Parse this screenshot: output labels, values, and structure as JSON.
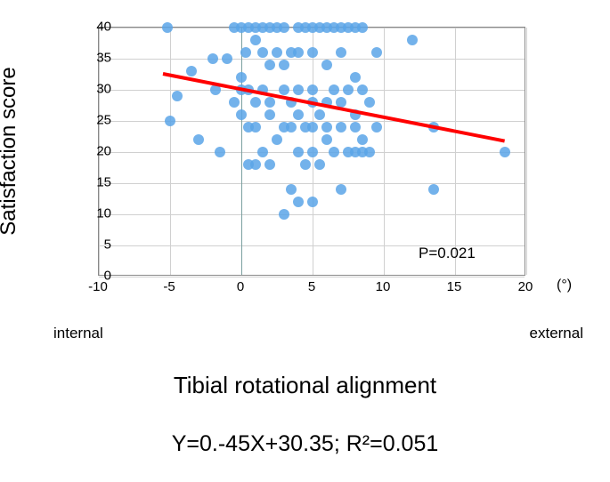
{
  "chart": {
    "type": "scatter",
    "xlim": [
      -10,
      20
    ],
    "ylim": [
      0,
      40
    ],
    "xticks": [
      -10,
      -5,
      0,
      5,
      10,
      15,
      20
    ],
    "yticks": [
      0,
      5,
      10,
      15,
      20,
      25,
      30,
      35,
      40
    ],
    "grid_color": "#d0d0d0",
    "zero_line_color": "#7aa0a0",
    "background_color": "#ffffff",
    "border_color": "#888888",
    "point_color": "#5aa5e8",
    "point_radius": 6,
    "trend_color": "#ff0000",
    "trend_width": 4,
    "trend_x1": -5.5,
    "trend_y1": 32.8,
    "trend_x2": 18.5,
    "trend_y2": 22.0,
    "points": [
      [
        -5.2,
        40
      ],
      [
        -5.0,
        25
      ],
      [
        -4.5,
        29
      ],
      [
        -3.5,
        33
      ],
      [
        -3.0,
        22
      ],
      [
        -2.0,
        35
      ],
      [
        -1.8,
        30
      ],
      [
        -1.5,
        20
      ],
      [
        -1.0,
        35
      ],
      [
        -0.5,
        40
      ],
      [
        -0.5,
        28
      ],
      [
        0.0,
        30
      ],
      [
        0.0,
        40
      ],
      [
        0.0,
        32
      ],
      [
        0.0,
        26
      ],
      [
        0.3,
        36
      ],
      [
        0.5,
        40
      ],
      [
        0.5,
        30
      ],
      [
        0.5,
        24
      ],
      [
        0.5,
        18
      ],
      [
        1.0,
        40
      ],
      [
        1.0,
        38
      ],
      [
        1.0,
        24
      ],
      [
        1.0,
        18
      ],
      [
        1.0,
        28
      ],
      [
        1.5,
        40
      ],
      [
        1.5,
        36
      ],
      [
        1.5,
        30
      ],
      [
        1.5,
        20
      ],
      [
        2.0,
        40
      ],
      [
        2.0,
        34
      ],
      [
        2.0,
        28
      ],
      [
        2.0,
        26
      ],
      [
        2.0,
        18
      ],
      [
        2.5,
        40
      ],
      [
        2.5,
        36
      ],
      [
        2.5,
        22
      ],
      [
        3.0,
        40
      ],
      [
        3.0,
        34
      ],
      [
        3.0,
        30
      ],
      [
        3.0,
        24
      ],
      [
        3.0,
        10
      ],
      [
        3.5,
        36
      ],
      [
        3.5,
        28
      ],
      [
        3.5,
        24
      ],
      [
        3.5,
        14
      ],
      [
        4.0,
        40
      ],
      [
        4.0,
        36
      ],
      [
        4.0,
        30
      ],
      [
        4.0,
        26
      ],
      [
        4.0,
        20
      ],
      [
        4.0,
        12
      ],
      [
        4.5,
        40
      ],
      [
        4.5,
        24
      ],
      [
        4.5,
        18
      ],
      [
        5.0,
        40
      ],
      [
        5.0,
        36
      ],
      [
        5.0,
        30
      ],
      [
        5.0,
        28
      ],
      [
        5.0,
        24
      ],
      [
        5.0,
        20
      ],
      [
        5.0,
        12
      ],
      [
        5.5,
        40
      ],
      [
        5.5,
        26
      ],
      [
        5.5,
        18
      ],
      [
        6.0,
        40
      ],
      [
        6.0,
        34
      ],
      [
        6.0,
        28
      ],
      [
        6.0,
        24
      ],
      [
        6.0,
        22
      ],
      [
        6.5,
        40
      ],
      [
        6.5,
        30
      ],
      [
        6.5,
        20
      ],
      [
        7.0,
        40
      ],
      [
        7.0,
        36
      ],
      [
        7.0,
        28
      ],
      [
        7.0,
        24
      ],
      [
        7.0,
        14
      ],
      [
        7.5,
        40
      ],
      [
        7.5,
        30
      ],
      [
        7.5,
        20
      ],
      [
        8.0,
        40
      ],
      [
        8.0,
        32
      ],
      [
        8.0,
        26
      ],
      [
        8.0,
        24
      ],
      [
        8.0,
        20
      ],
      [
        8.5,
        40
      ],
      [
        8.5,
        30
      ],
      [
        8.5,
        22
      ],
      [
        8.5,
        20
      ],
      [
        9.0,
        28
      ],
      [
        9.0,
        20
      ],
      [
        9.5,
        36
      ],
      [
        9.5,
        24
      ],
      [
        12.0,
        38
      ],
      [
        13.5,
        14
      ],
      [
        13.5,
        24
      ],
      [
        18.5,
        20
      ]
    ]
  },
  "labels": {
    "y_axis_title": "Satisfaction score",
    "x_axis_title": "Tibial rotational alignment",
    "p_value": "P=0.021",
    "unit": "(°)",
    "internal": "internal",
    "external": "external",
    "equation": "Y=0.-45X+30.35; R²=0.051"
  },
  "fonts": {
    "axis_title_size": 26,
    "tick_size": 15,
    "annotation_size": 17,
    "equation_size": 25
  }
}
